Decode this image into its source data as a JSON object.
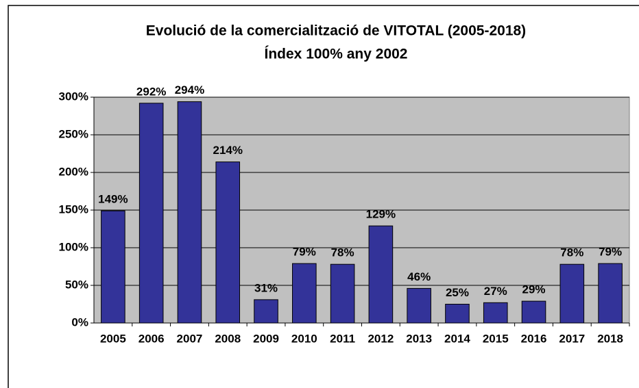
{
  "chart_data": {
    "type": "bar",
    "title": "Evolució de la comercialització de VITOTAL (2005-2018)",
    "subtitle": "Índex 100% any 2002",
    "categories": [
      "2005",
      "2006",
      "2007",
      "2008",
      "2009",
      "2010",
      "2011",
      "2012",
      "2013",
      "2014",
      "2015",
      "2016",
      "2017",
      "2018"
    ],
    "values": [
      149,
      292,
      294,
      214,
      31,
      79,
      78,
      129,
      46,
      25,
      27,
      29,
      78,
      79
    ],
    "value_labels": [
      "149%",
      "292%",
      "294%",
      "214%",
      "31%",
      "79%",
      "78%",
      "129%",
      "46%",
      "25%",
      "27%",
      "29%",
      "78%",
      "79%"
    ],
    "color": "#333399",
    "ylim": [
      0,
      300
    ],
    "yticks": [
      {
        "value": 0,
        "label": "0%"
      },
      {
        "value": 50,
        "label": "50%"
      },
      {
        "value": 100,
        "label": "100%"
      },
      {
        "value": 150,
        "label": "150%"
      },
      {
        "value": 200,
        "label": "200%"
      },
      {
        "value": 250,
        "label": "250%"
      },
      {
        "value": 300,
        "label": "300%"
      }
    ],
    "grid": true
  }
}
